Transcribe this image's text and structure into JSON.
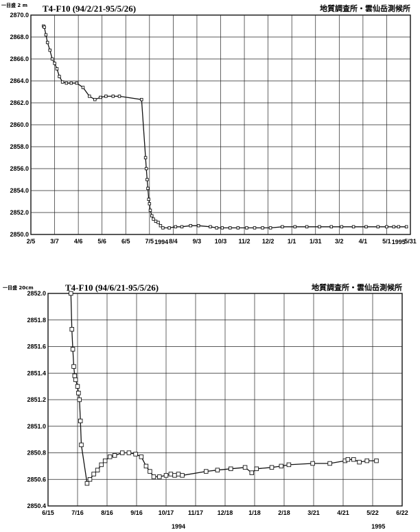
{
  "chart_data": [
    {
      "type": "line",
      "title": "T4-F10 (94/2/21-95/5/26)",
      "organization": "地質調査所・雲仙岳測候所",
      "grid_note": "一目盛 2 m",
      "year_labels": [
        {
          "text": "1994",
          "x": "7/20"
        },
        {
          "text": "1995",
          "x": "5/16"
        }
      ],
      "xaxis_ticks": [
        "2/5",
        "3/7",
        "4/6",
        "5/6",
        "6/5",
        "7/5",
        "8/4",
        "9/3",
        "10/3",
        "11/2",
        "12/2",
        "1/1",
        "1/31",
        "3/2",
        "4/1",
        "5/1",
        "5/31"
      ],
      "yaxis_ticks": [
        "2850.0",
        "2852.0",
        "2854.0",
        "2856.0",
        "2858.0",
        "2860.0",
        "2862.0",
        "2864.0",
        "2866.0",
        "2868.0",
        "2870.0"
      ],
      "xlim": [
        "1994-02-05",
        "1995-05-31"
      ],
      "ylim": [
        2850.0,
        2870.0
      ],
      "grid": true,
      "series": [
        {
          "points": [
            [
              "1994-02-21",
              2869.0
            ],
            [
              "1994-02-22",
              2868.9
            ],
            [
              "1994-02-24",
              2868.2
            ],
            [
              "1994-02-26",
              2867.5
            ],
            [
              "1994-03-01",
              2866.8
            ],
            [
              "1994-03-04",
              2866.0
            ],
            [
              "1994-03-07",
              2865.6
            ],
            [
              "1994-03-10",
              2865.1
            ],
            [
              "1994-03-13",
              2864.4
            ],
            [
              "1994-03-17",
              2863.9
            ],
            [
              "1994-03-22",
              2863.8
            ],
            [
              "1994-03-28",
              2863.8
            ],
            [
              "1994-04-04",
              2863.8
            ],
            [
              "1994-04-12",
              2863.4
            ],
            [
              "1994-04-20",
              2862.6
            ],
            [
              "1994-04-27",
              2862.3
            ],
            [
              "1994-05-04",
              2862.5
            ],
            [
              "1994-05-11",
              2862.6
            ],
            [
              "1994-05-20",
              2862.6
            ],
            [
              "1994-05-28",
              2862.6
            ],
            [
              "1994-06-25",
              2862.3
            ],
            [
              "1994-06-30",
              2857.0
            ],
            [
              "1994-07-01",
              2856.0
            ],
            [
              "1994-07-02",
              2855.0
            ],
            [
              "1994-07-03",
              2854.2
            ],
            [
              "1994-07-04",
              2853.2
            ],
            [
              "1994-07-05",
              2852.8
            ],
            [
              "1994-07-06",
              2852.2
            ],
            [
              "1994-07-08",
              2851.7
            ],
            [
              "1994-07-10",
              2851.4
            ],
            [
              "1994-07-13",
              2851.2
            ],
            [
              "1994-07-16",
              2851.1
            ],
            [
              "1994-07-19",
              2850.8
            ],
            [
              "1994-07-22",
              2850.6
            ],
            [
              "1994-07-30",
              2850.6
            ],
            [
              "1994-08-07",
              2850.7
            ],
            [
              "1994-08-15",
              2850.7
            ],
            [
              "1994-08-26",
              2850.8
            ],
            [
              "1994-09-05",
              2850.8
            ],
            [
              "1994-09-20",
              2850.7
            ],
            [
              "1994-09-28",
              2850.6
            ],
            [
              "1994-10-05",
              2850.6
            ],
            [
              "1994-10-15",
              2850.6
            ],
            [
              "1994-10-25",
              2850.6
            ],
            [
              "1994-11-05",
              2850.6
            ],
            [
              "1994-11-15",
              2850.6
            ],
            [
              "1994-11-25",
              2850.6
            ],
            [
              "1994-12-05",
              2850.6
            ],
            [
              "1994-12-20",
              2850.7
            ],
            [
              "1995-01-05",
              2850.7
            ],
            [
              "1995-01-20",
              2850.7
            ],
            [
              "1995-02-05",
              2850.7
            ],
            [
              "1995-02-20",
              2850.7
            ],
            [
              "1995-03-05",
              2850.7
            ],
            [
              "1995-03-20",
              2850.7
            ],
            [
              "1995-04-05",
              2850.7
            ],
            [
              "1995-04-20",
              2850.7
            ],
            [
              "1995-05-01",
              2850.7
            ],
            [
              "1995-05-10",
              2850.7
            ],
            [
              "1995-05-16",
              2850.7
            ],
            [
              "1995-05-26",
              2850.7
            ]
          ]
        }
      ]
    },
    {
      "type": "line",
      "title": "T4-F10 (94/6/21-95/5/26)",
      "organization": "地質調査所・雲仙岳測候所",
      "grid_note": "一目盛 20cm",
      "year_labels": [
        {
          "text": "1994",
          "x": "10/30"
        },
        {
          "text": "1995",
          "x": "5/28"
        }
      ],
      "xaxis_ticks": [
        "6/15",
        "7/16",
        "8/16",
        "9/16",
        "10/17",
        "11/17",
        "12/18",
        "1/18",
        "2/18",
        "3/21",
        "4/21",
        "5/22",
        "6/22"
      ],
      "yaxis_ticks": [
        "2850.4",
        "2850.6",
        "2850.8",
        "2851.0",
        "2851.2",
        "2851.4",
        "2851.6",
        "2851.8",
        "2852.0"
      ],
      "xlim": [
        "1994-06-15",
        "1995-06-22"
      ],
      "ylim": [
        2850.4,
        2852.0
      ],
      "grid": true,
      "series": [
        {
          "points": [
            [
              "1994-07-09",
              2852.0
            ],
            [
              "1994-07-10",
              2851.73
            ],
            [
              "1994-07-11",
              2851.58
            ],
            [
              "1994-07-12",
              2851.45
            ],
            [
              "1994-07-13",
              2851.38
            ],
            [
              "1994-07-14",
              2851.35
            ],
            [
              "1994-07-16",
              2851.3
            ],
            [
              "1994-07-17",
              2851.25
            ],
            [
              "1994-07-18",
              2851.2
            ],
            [
              "1994-07-19",
              2851.04
            ],
            [
              "1994-07-20",
              2850.86
            ],
            [
              "1994-07-26",
              2850.57
            ],
            [
              "1994-07-29",
              2850.6
            ],
            [
              "1994-08-02",
              2850.64
            ],
            [
              "1994-08-06",
              2850.67
            ],
            [
              "1994-08-10",
              2850.71
            ],
            [
              "1994-08-14",
              2850.74
            ],
            [
              "1994-08-19",
              2850.77
            ],
            [
              "1994-08-24",
              2850.78
            ],
            [
              "1994-09-01",
              2850.8
            ],
            [
              "1994-09-08",
              2850.8
            ],
            [
              "1994-09-15",
              2850.79
            ],
            [
              "1994-09-21",
              2850.77
            ],
            [
              "1994-09-26",
              2850.7
            ],
            [
              "1994-09-30",
              2850.66
            ],
            [
              "1994-10-04",
              2850.62
            ],
            [
              "1994-10-10",
              2850.62
            ],
            [
              "1994-10-17",
              2850.63
            ],
            [
              "1994-10-22",
              2850.64
            ],
            [
              "1994-10-26",
              2850.63
            ],
            [
              "1994-10-30",
              2850.64
            ],
            [
              "1994-11-03",
              2850.63
            ],
            [
              "1994-11-28",
              2850.66
            ],
            [
              "1994-12-10",
              2850.67
            ],
            [
              "1994-12-24",
              2850.68
            ],
            [
              "1995-01-08",
              2850.69
            ],
            [
              "1995-01-15",
              2850.65
            ],
            [
              "1995-01-20",
              2850.68
            ],
            [
              "1995-02-05",
              2850.69
            ],
            [
              "1995-02-15",
              2850.7
            ],
            [
              "1995-02-23",
              2850.71
            ],
            [
              "1995-03-20",
              2850.72
            ],
            [
              "1995-04-07",
              2850.72
            ],
            [
              "1995-04-23",
              2850.74
            ],
            [
              "1995-04-26",
              2850.75
            ],
            [
              "1995-05-02",
              2850.75
            ],
            [
              "1995-05-08",
              2850.73
            ],
            [
              "1995-05-16",
              2850.74
            ],
            [
              "1995-05-26",
              2850.74
            ]
          ]
        }
      ]
    }
  ]
}
